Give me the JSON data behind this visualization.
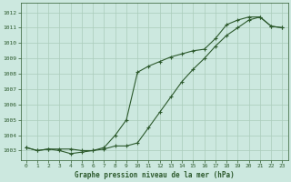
{
  "title": "Graphe pression niveau de la mer (hPa)",
  "bg_color": "#cce8df",
  "grid_color": "#aaccbb",
  "line_color": "#2d5a2d",
  "spine_color": "#2d5a2d",
  "xlim": [
    -0.5,
    23.5
  ],
  "ylim": [
    1002.4,
    1012.6
  ],
  "yticks": [
    1003,
    1004,
    1005,
    1006,
    1007,
    1008,
    1009,
    1010,
    1011,
    1012
  ],
  "xticks": [
    0,
    1,
    2,
    3,
    4,
    5,
    6,
    7,
    8,
    9,
    10,
    11,
    12,
    13,
    14,
    15,
    16,
    17,
    18,
    19,
    20,
    21,
    22,
    23
  ],
  "line1_x": [
    0,
    1,
    2,
    3,
    4,
    5,
    6,
    7,
    8,
    9,
    10,
    11,
    12,
    13,
    14,
    15,
    16,
    17,
    18,
    19,
    20,
    21,
    22,
    23
  ],
  "line1_y": [
    1003.2,
    1003.0,
    1003.1,
    1003.0,
    1002.8,
    1002.9,
    1003.0,
    1003.2,
    1004.0,
    1005.0,
    1008.1,
    1008.5,
    1008.8,
    1009.1,
    1009.3,
    1009.5,
    1009.6,
    1010.3,
    1011.2,
    1011.5,
    1011.7,
    1011.7,
    1011.1,
    1011.0
  ],
  "line2_x": [
    0,
    1,
    2,
    3,
    4,
    5,
    6,
    7,
    8,
    9,
    10,
    11,
    12,
    13,
    14,
    15,
    16,
    17,
    18,
    19,
    20,
    21,
    22,
    23
  ],
  "line2_y": [
    1003.2,
    1003.0,
    1003.1,
    1003.1,
    1003.1,
    1003.0,
    1003.0,
    1003.1,
    1003.3,
    1003.3,
    1003.5,
    1004.5,
    1005.5,
    1006.5,
    1007.5,
    1008.3,
    1009.0,
    1009.8,
    1010.5,
    1011.0,
    1011.5,
    1011.7,
    1011.1,
    1011.0
  ],
  "marker": "+",
  "markersize": 3.5,
  "linewidth": 0.8,
  "tick_labelsize": 4.5,
  "xlabel_fontsize": 5.5
}
